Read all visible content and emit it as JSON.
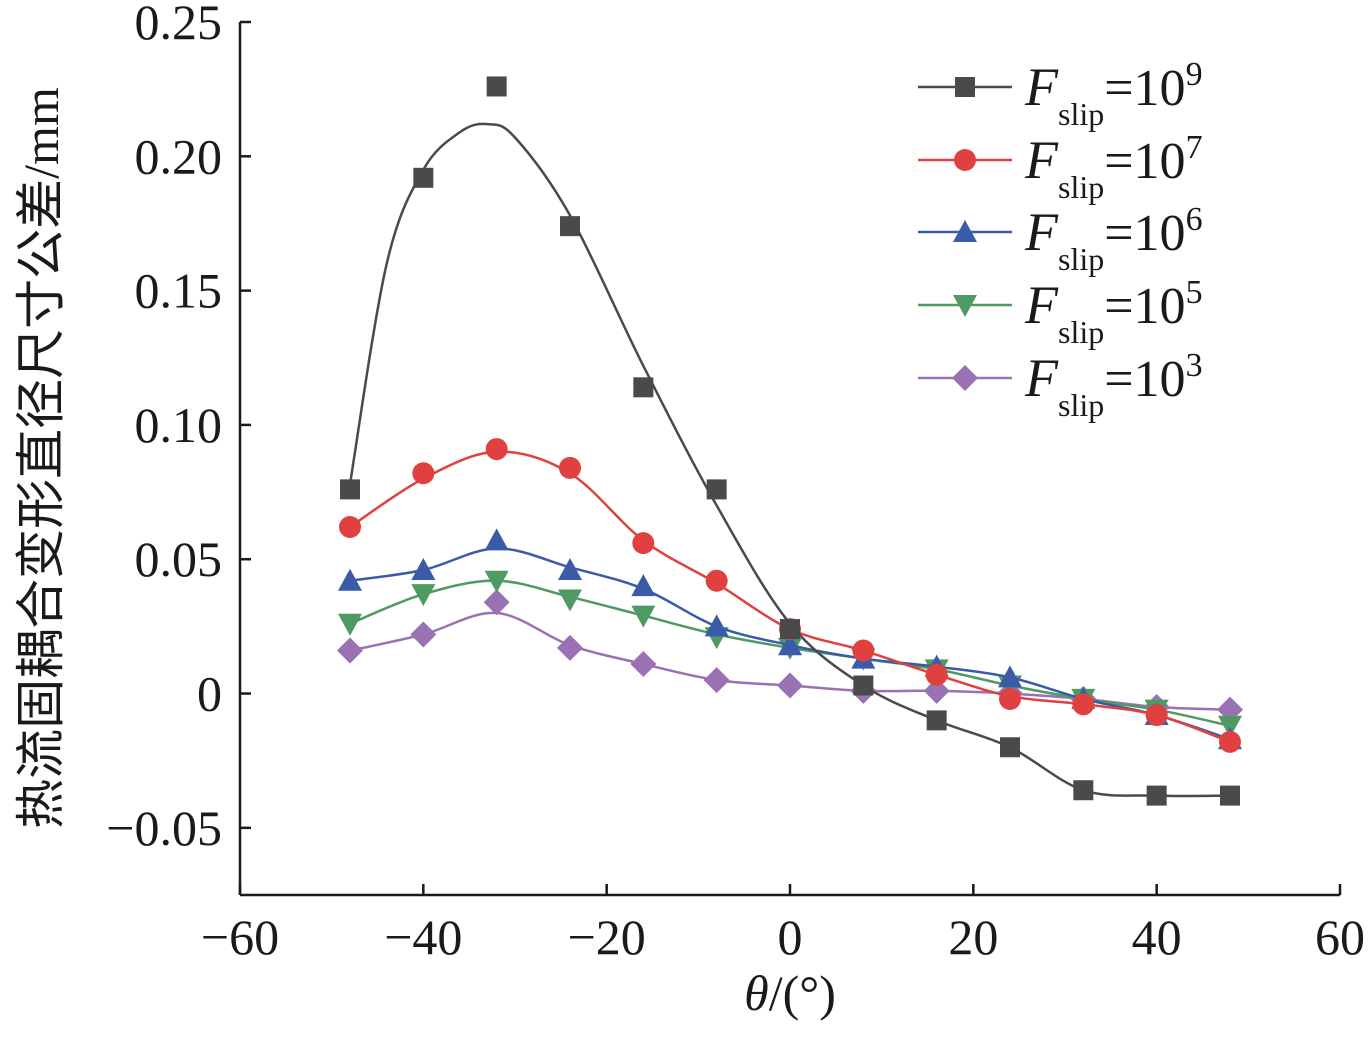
{
  "chart_data": {
    "type": "line",
    "xlabel_var": "θ",
    "xlabel_unit": "/(°)",
    "ylabel": "热流固耦合变形直径尺寸公差/mm",
    "xlim": [
      -60,
      60
    ],
    "ylim": [
      -0.075,
      0.25
    ],
    "x_ticks": [
      -60,
      -40,
      -20,
      0,
      20,
      40,
      60
    ],
    "x_tick_labels": [
      "−60",
      "−40",
      "−20",
      "0",
      "20",
      "40",
      "60"
    ],
    "y_ticks": [
      -0.05,
      0,
      0.05,
      0.1,
      0.15,
      0.2,
      0.25
    ],
    "y_tick_labels": [
      "−0.05",
      "0",
      "0.05",
      "0.10",
      "0.15",
      "0.20",
      "0.25"
    ],
    "legend_position": "top-right",
    "x": [
      -48,
      -40,
      -32,
      -24,
      -16,
      -8,
      0,
      8,
      16,
      24,
      32,
      40,
      48
    ],
    "series": [
      {
        "name": "F_slip=10^9",
        "legend_symbol": "F",
        "legend_sub": "slip",
        "legend_base": "=10",
        "legend_exp": "9",
        "color": "#4a4a4a",
        "marker": "square",
        "values": [
          0.076,
          0.192,
          0.226,
          0.174,
          0.114,
          0.076,
          0.024,
          0.003,
          -0.01,
          -0.02,
          -0.036,
          -0.038,
          -0.038
        ],
        "curve": [
          [
            -48,
            0.078
          ],
          [
            -44,
            0.16
          ],
          [
            -40,
            0.195
          ],
          [
            -36,
            0.209
          ],
          [
            -33,
            0.212
          ],
          [
            -30,
            0.207
          ],
          [
            -24,
            0.178
          ],
          [
            -16,
            0.122
          ],
          [
            -8,
            0.07
          ],
          [
            0,
            0.026
          ],
          [
            8,
            0.003
          ],
          [
            16,
            -0.01
          ],
          [
            24,
            -0.02
          ],
          [
            32,
            -0.036
          ],
          [
            40,
            -0.038
          ],
          [
            48,
            -0.038
          ]
        ]
      },
      {
        "name": "F_slip=10^7",
        "legend_symbol": "F",
        "legend_sub": "slip",
        "legend_base": "=10",
        "legend_exp": "7",
        "color": "#e04040",
        "marker": "circle",
        "values": [
          0.062,
          0.082,
          0.091,
          0.084,
          0.056,
          0.042,
          0.024,
          0.016,
          0.007,
          -0.002,
          -0.004,
          -0.008,
          -0.018
        ],
        "curve": [
          [
            -48,
            0.062
          ],
          [
            -40,
            0.08
          ],
          [
            -32,
            0.09
          ],
          [
            -24,
            0.082
          ],
          [
            -16,
            0.057
          ],
          [
            -8,
            0.041
          ],
          [
            0,
            0.024
          ],
          [
            8,
            0.016
          ],
          [
            16,
            0.007
          ],
          [
            24,
            -0.001
          ],
          [
            32,
            -0.004
          ],
          [
            40,
            -0.008
          ],
          [
            48,
            -0.018
          ]
        ]
      },
      {
        "name": "F_slip=10^6",
        "legend_symbol": "F",
        "legend_sub": "slip",
        "legend_base": "=10",
        "legend_exp": "6",
        "color": "#3a5ba8",
        "marker": "triangle-up",
        "values": [
          0.042,
          0.046,
          0.057,
          0.046,
          0.04,
          0.025,
          0.018,
          0.013,
          0.01,
          0.006,
          -0.002,
          -0.008,
          -0.017
        ],
        "curve": [
          [
            -48,
            0.042
          ],
          [
            -40,
            0.046
          ],
          [
            -32,
            0.054
          ],
          [
            -24,
            0.047
          ],
          [
            -16,
            0.039
          ],
          [
            -8,
            0.025
          ],
          [
            0,
            0.018
          ],
          [
            8,
            0.013
          ],
          [
            16,
            0.01
          ],
          [
            24,
            0.006
          ],
          [
            32,
            -0.002
          ],
          [
            40,
            -0.008
          ],
          [
            48,
            -0.017
          ]
        ]
      },
      {
        "name": "F_slip=10^5",
        "legend_symbol": "F",
        "legend_sub": "slip",
        "legend_base": "=10",
        "legend_exp": "5",
        "color": "#4e9a62",
        "marker": "triangle-down",
        "values": [
          0.026,
          0.037,
          0.042,
          0.035,
          0.029,
          0.021,
          0.017,
          0.013,
          0.009,
          0.003,
          -0.002,
          -0.006,
          -0.012
        ],
        "curve": [
          [
            -48,
            0.026
          ],
          [
            -40,
            0.037
          ],
          [
            -32,
            0.042
          ],
          [
            -24,
            0.036
          ],
          [
            -16,
            0.029
          ],
          [
            -8,
            0.022
          ],
          [
            0,
            0.017
          ],
          [
            8,
            0.013
          ],
          [
            16,
            0.009
          ],
          [
            24,
            0.003
          ],
          [
            32,
            -0.002
          ],
          [
            40,
            -0.006
          ],
          [
            48,
            -0.012
          ]
        ]
      },
      {
        "name": "F_slip=10^3",
        "legend_symbol": "F",
        "legend_sub": "slip",
        "legend_base": "=10",
        "legend_exp": "3",
        "color": "#9a72b4",
        "marker": "diamond",
        "values": [
          0.016,
          0.022,
          0.034,
          0.017,
          0.011,
          0.005,
          0.003,
          0.001,
          0.001,
          0.0,
          -0.002,
          -0.005,
          -0.006
        ],
        "curve": [
          [
            -48,
            0.016
          ],
          [
            -40,
            0.022
          ],
          [
            -32,
            0.03
          ],
          [
            -24,
            0.018
          ],
          [
            -16,
            0.011
          ],
          [
            -8,
            0.005
          ],
          [
            0,
            0.003
          ],
          [
            8,
            0.001
          ],
          [
            16,
            0.001
          ],
          [
            24,
            0.0
          ],
          [
            32,
            -0.002
          ],
          [
            40,
            -0.005
          ],
          [
            48,
            -0.006
          ]
        ]
      }
    ]
  }
}
